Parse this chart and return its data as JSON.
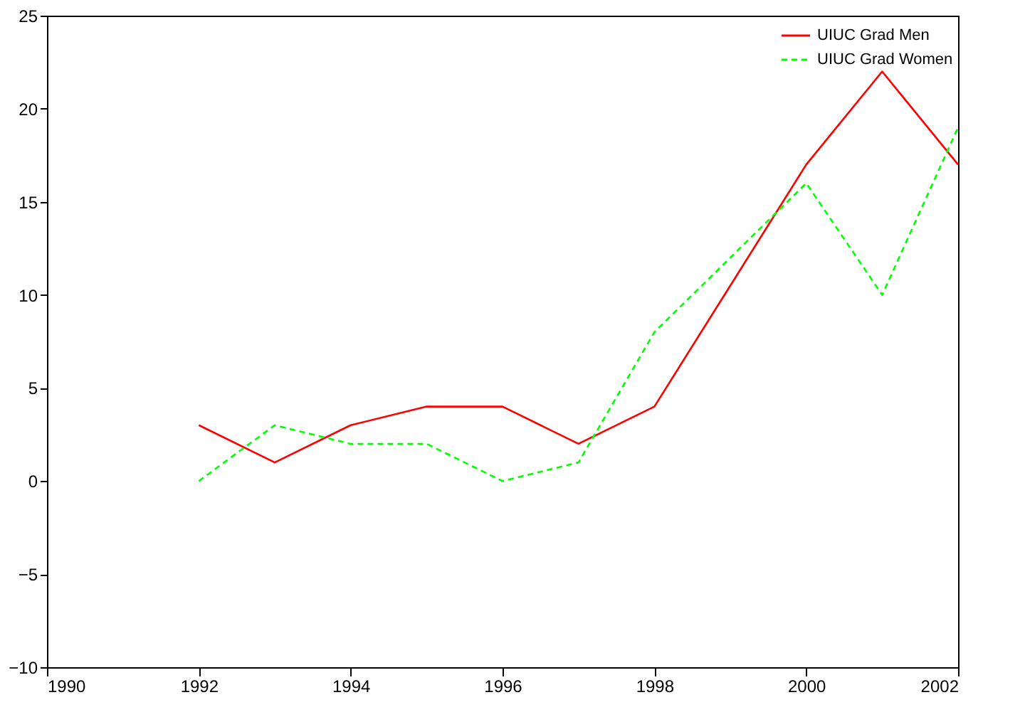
{
  "chart_data": {
    "type": "line",
    "xlim": [
      1990,
      2002
    ],
    "xticks": [
      1990,
      1992,
      1994,
      1996,
      1998,
      2000,
      2002
    ],
    "ylim": [
      -10,
      25
    ],
    "yticks": [
      -10,
      -5,
      0,
      5,
      10,
      15,
      20,
      25
    ],
    "grid": false,
    "legend": "top right",
    "series": [
      {
        "name": "UIUC Grad Men",
        "color": "#ff0000",
        "line_style": "solid",
        "x": [
          1992,
          1993,
          1994,
          1995,
          1996,
          1997,
          1998,
          2000,
          2001,
          2002
        ],
        "values": [
          3,
          1,
          3,
          4,
          4,
          2,
          4,
          17,
          22,
          17
        ]
      },
      {
        "name": "UIUC Grad Women",
        "color": "#00ff00",
        "line_style": "dashed",
        "x": [
          1992,
          1993,
          1994,
          1995,
          1996,
          1997,
          1998,
          2000,
          2001,
          2002
        ],
        "values": [
          0,
          3,
          2,
          2,
          0,
          1,
          8,
          16,
          10,
          19
        ]
      }
    ]
  }
}
